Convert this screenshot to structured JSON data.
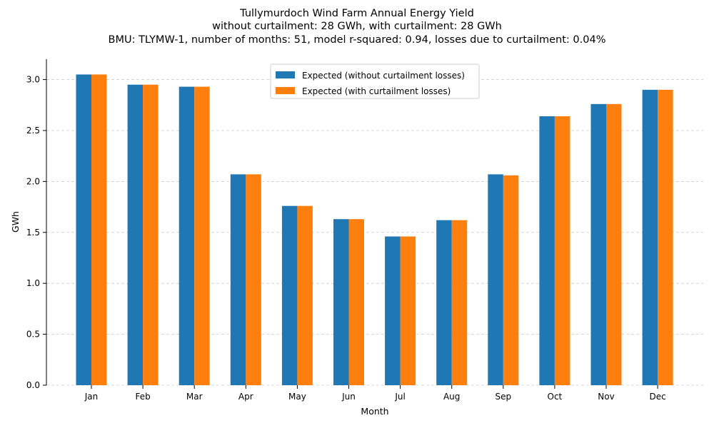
{
  "chart_data": {
    "type": "bar",
    "title_lines": [
      "Tullymurdoch Wind Farm Annual Energy Yield",
      "without curtailment: 28 GWh, with curtailment: 28 GWh",
      "BMU: TLYMW-1, number of months: 51, model r-squared: 0.94, losses due to curtailment: 0.04%"
    ],
    "xlabel": "Month",
    "ylabel": "GWh",
    "ylim": [
      0,
      3.2
    ],
    "yticks": [
      "0.0",
      "0.5",
      "1.0",
      "1.5",
      "2.0",
      "2.5",
      "3.0"
    ],
    "categories": [
      "Jan",
      "Feb",
      "Mar",
      "Apr",
      "May",
      "Jun",
      "Jul",
      "Aug",
      "Sep",
      "Oct",
      "Nov",
      "Dec"
    ],
    "series": [
      {
        "name": "Expected (without curtailment losses)",
        "color": "#1f77b4",
        "values": [
          3.05,
          2.95,
          2.93,
          2.07,
          1.76,
          1.63,
          1.46,
          1.62,
          2.07,
          2.64,
          2.76,
          2.9
        ]
      },
      {
        "name": "Expected (with curtailment losses)",
        "color": "#ff7f0e",
        "values": [
          3.05,
          2.95,
          2.93,
          2.07,
          1.76,
          1.63,
          1.46,
          1.62,
          2.06,
          2.64,
          2.76,
          2.9
        ]
      }
    ],
    "grid": true,
    "legend_position": "top-center"
  }
}
